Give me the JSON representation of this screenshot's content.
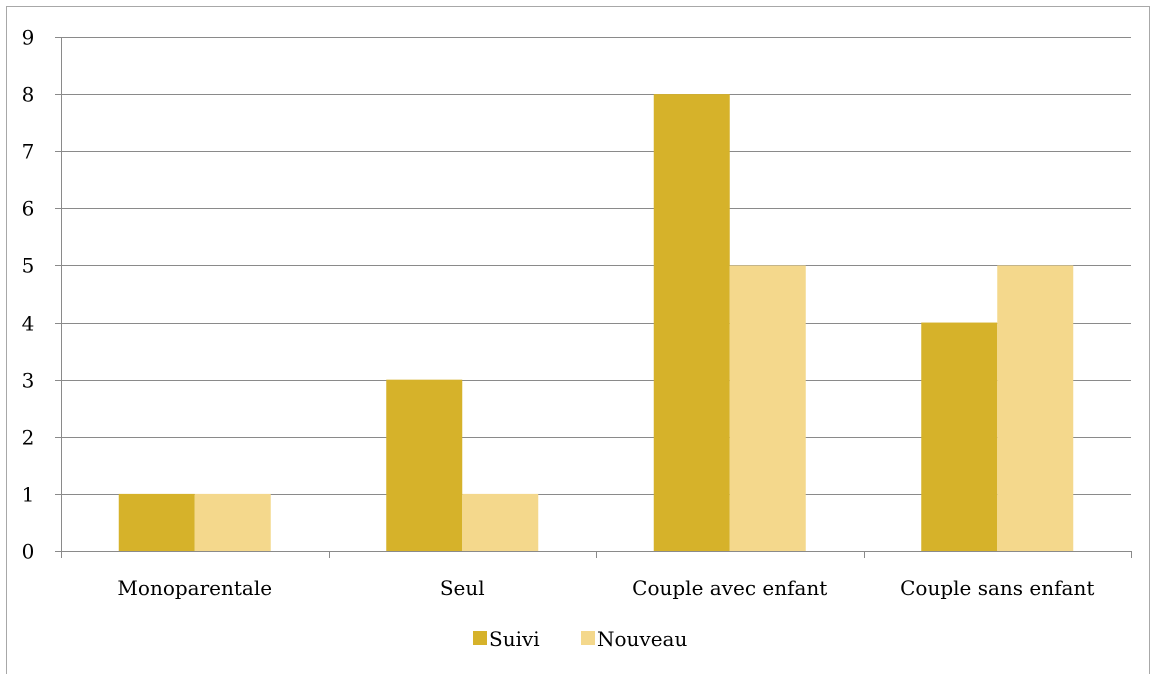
{
  "chart_data": {
    "type": "bar",
    "categories": [
      "Monoparentale",
      "Seul",
      "Couple avec enfant",
      "Couple sans enfant"
    ],
    "series": [
      {
        "name": "Suivi",
        "values": [
          1,
          3,
          8,
          4
        ],
        "color": "#D6B22A"
      },
      {
        "name": "Nouveau",
        "values": [
          1,
          1,
          5,
          5
        ],
        "color": "#F4D88C"
      }
    ],
    "ylim": [
      0,
      9
    ],
    "yticks": [
      0,
      1,
      2,
      3,
      4,
      5,
      6,
      7,
      8,
      9
    ],
    "grid": true,
    "legend": "bottom",
    "gridline_color": "#8a8a8a",
    "axis_color": "#8a8a8a"
  }
}
